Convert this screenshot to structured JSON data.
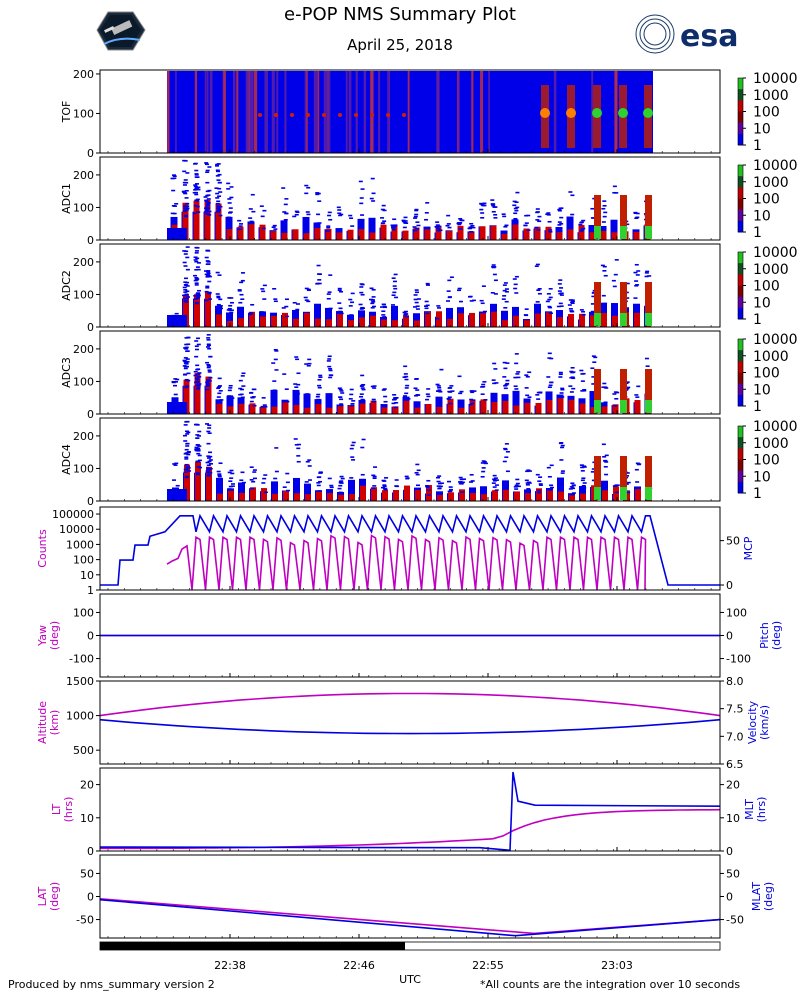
{
  "header": {
    "title": "e-POP NMS Summary Plot",
    "date": "April 25, 2018",
    "esa_logo_text": "esa"
  },
  "footer": {
    "left": "Produced by nms_summary version 2",
    "right": "*All counts are the integration over 10 seconds",
    "xlabel": "UTC"
  },
  "x_ticks": [
    "22:38",
    "22:46",
    "22:55",
    "23:03"
  ],
  "colors": {
    "magenta": "#c000c0",
    "blue": "#0000e0"
  },
  "colorbar_ticks": [
    "10000",
    "1000",
    "100",
    "10",
    "1"
  ],
  "chart_data": [
    {
      "type": "heatmap",
      "ylabel": "TOF",
      "yticks": [
        "200",
        "100",
        "0"
      ],
      "ylim": [
        0,
        210
      ],
      "note": "Counts mostly 1-10 (blue) with vertical stripes of higher counts early in pass and at TOF~100 late in pass"
    },
    {
      "type": "heatmap",
      "ylabel": "ADC1",
      "yticks": [
        "200",
        "100",
        "0"
      ],
      "ylim": [
        0,
        255
      ]
    },
    {
      "type": "heatmap",
      "ylabel": "ADC2",
      "yticks": [
        "200",
        "100",
        "0"
      ],
      "ylim": [
        0,
        255
      ]
    },
    {
      "type": "heatmap",
      "ylabel": "ADC3",
      "yticks": [
        "200",
        "100",
        "0"
      ],
      "ylim": [
        0,
        255
      ]
    },
    {
      "type": "heatmap",
      "ylabel": "ADC4",
      "yticks": [
        "200",
        "100",
        "0"
      ],
      "ylim": [
        0,
        255
      ]
    },
    {
      "type": "line",
      "ylabel": "Counts",
      "y2label": "MCP",
      "yticks_left": [
        "100000",
        "10000",
        "1000",
        "100",
        "10",
        "1"
      ],
      "yticks_right": [
        "50",
        "0"
      ],
      "series": [
        {
          "name": "Counts",
          "axis": "left",
          "description": "log-scale counts oscillating between ~1 and ~5000 from about 22:38 to 23:06"
        },
        {
          "name": "MCP",
          "axis": "right",
          "description": "steps up from 0 at 22:32 to ~78 near 22:37, oscillates 60-78 until 23:06, then returns to 0"
        }
      ]
    },
    {
      "type": "line",
      "ylabel": "Yaw\n(deg)",
      "y2label": "Pitch\n(deg)",
      "yticks_left": [
        "100",
        "0",
        "-100"
      ],
      "yticks_right": [
        "100",
        "0",
        "-100"
      ],
      "ylim": [
        -180,
        180
      ],
      "series": [
        {
          "name": "Yaw",
          "values_approx": 0
        },
        {
          "name": "Pitch",
          "values_approx": 0
        }
      ]
    },
    {
      "type": "line",
      "ylabel": "Altitude\n(km)",
      "y2label": "Velocity\n(km/s)",
      "yticks_left": [
        "1500",
        "1000",
        "500"
      ],
      "yticks_right": [
        "8.0",
        "7.5",
        "7.0",
        "6.5"
      ],
      "ylim_left": [
        300,
        1500
      ],
      "ylim_right": [
        6.5,
        8.0
      ],
      "series": [
        {
          "name": "Altitude",
          "x": [
            0,
            0.25,
            0.5,
            0.75,
            1.0
          ],
          "y": [
            1000,
            1230,
            1320,
            1250,
            1020
          ]
        },
        {
          "name": "Velocity",
          "x": [
            0,
            0.25,
            0.5,
            0.75,
            1.0
          ],
          "y": [
            7.3,
            7.1,
            7.05,
            7.1,
            7.28
          ]
        }
      ]
    },
    {
      "type": "line",
      "ylabel": "LT\n(hrs)",
      "y2label": "MLT\n(hrs)",
      "yticks_left": [
        "20",
        "10",
        "0"
      ],
      "yticks_right": [
        "20",
        "10",
        "0"
      ],
      "ylim": [
        0,
        25
      ],
      "series": [
        {
          "name": "LT",
          "description": "rises slowly from ~1 to ~4 then climbs to ~12.5 after 22:57"
        },
        {
          "name": "MLT",
          "description": "flat ~1, spikes to ~24 at 22:57 then settles ~13.5"
        }
      ]
    },
    {
      "type": "line",
      "ylabel": "LAT\n(deg)",
      "y2label": "MLAT\n(deg)",
      "yticks_left": [
        "50",
        "0",
        "-50"
      ],
      "yticks_right": [
        "50",
        "0",
        "-50"
      ],
      "ylim": [
        -90,
        90
      ],
      "series": [
        {
          "name": "LAT",
          "x": [
            0,
            0.7,
            1.0
          ],
          "y": [
            -5,
            -80,
            -50
          ]
        },
        {
          "name": "MLAT",
          "x": [
            0,
            0.67,
            1.0
          ],
          "y": [
            -7,
            -85,
            -50
          ]
        }
      ]
    }
  ]
}
